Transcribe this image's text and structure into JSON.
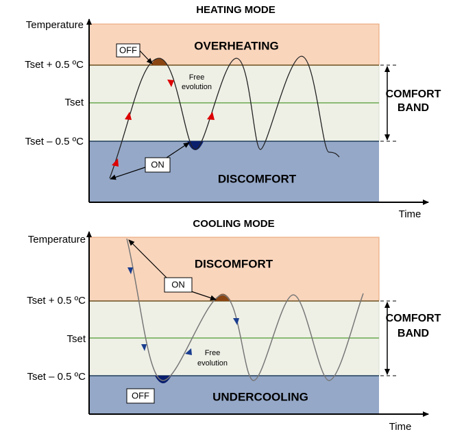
{
  "panels": [
    {
      "title": "HEATING MODE",
      "y_axis_label": "Temperature",
      "levels": [
        "Tset + 0.5 ºC",
        "Tset",
        "Tset – 0.5 ºC"
      ],
      "upper_zone": "OVERHEATING",
      "lower_zone": "DISCOMFORT",
      "on_label": "ON",
      "off_label": "OFF",
      "free_evolution": [
        "Free",
        "evolution"
      ],
      "band_label": [
        "COMFORT",
        "BAND"
      ],
      "x_axis_label": "Time"
    },
    {
      "title": "COOLING MODE",
      "y_axis_label": "Temperature",
      "levels": [
        "Tset + 0.5 ºC",
        "Tset",
        "Tset – 0.5 ºC"
      ],
      "upper_zone": "DISCOMFORT",
      "lower_zone": "UNDERCOOLING",
      "on_label": "ON",
      "off_label": "OFF",
      "free_evolution": [
        "Free",
        "evolution"
      ],
      "band_label": [
        "COMFORT",
        "BAND"
      ],
      "x_axis_label": "Time"
    }
  ]
}
